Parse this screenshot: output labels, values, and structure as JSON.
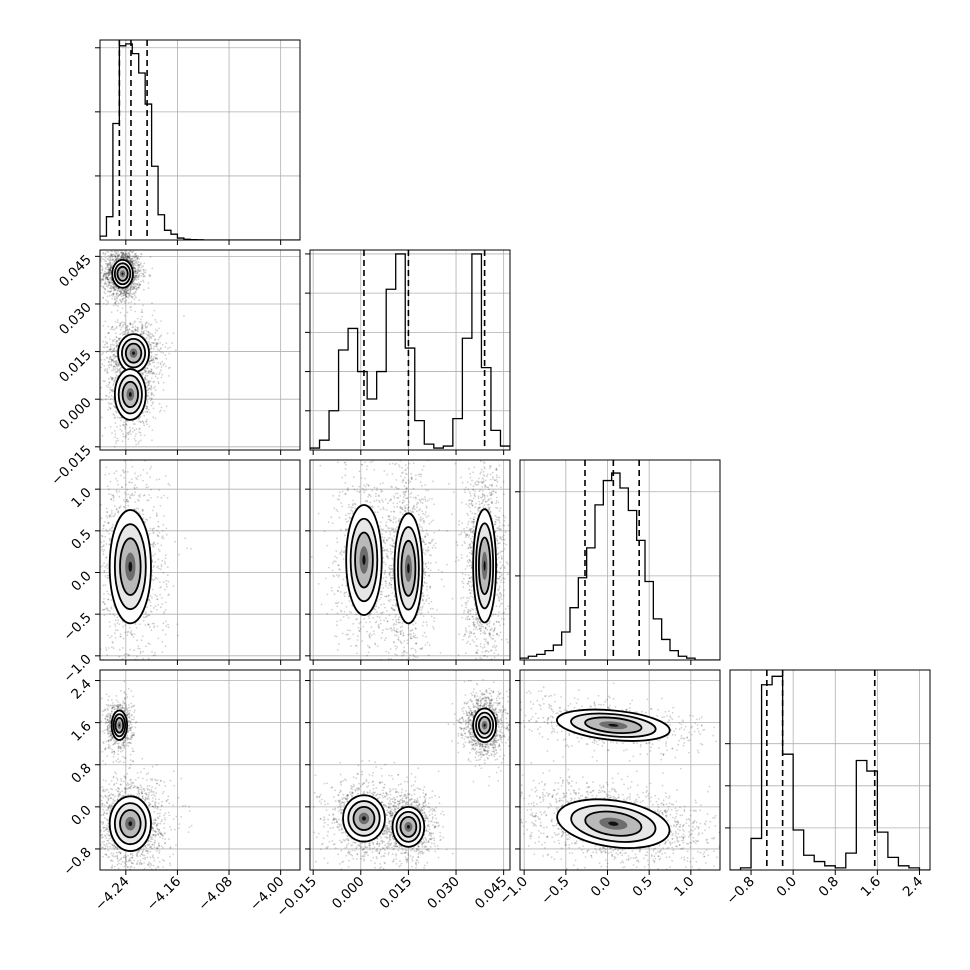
{
  "chart_data": {
    "type": "corner",
    "parameters": [
      {
        "name": "",
        "range": [
          -4.28,
          -3.97
        ],
        "ticks": [
          -4.24,
          -4.16,
          -4.08,
          -4.0
        ],
        "tick_labels": [
          "−4.24",
          "−4.16",
          "−4.08",
          "−4.00"
        ]
      },
      {
        "name": "",
        "range": [
          -0.016,
          0.047
        ],
        "ticks": [
          -0.015,
          0.0,
          0.015,
          0.03,
          0.045
        ],
        "tick_labels": [
          "−0.015",
          "0.000",
          "0.015",
          "0.030",
          "0.045"
        ]
      },
      {
        "name": "",
        "range": [
          -1.05,
          1.35
        ],
        "ticks": [
          -1.0,
          -0.5,
          0.0,
          0.5,
          1.0
        ],
        "tick_labels": [
          "−1.0",
          "−0.5",
          "0.0",
          "0.5",
          "1.0"
        ]
      },
      {
        "name": "",
        "range": [
          -1.2,
          2.6
        ],
        "ticks": [
          -0.8,
          0.0,
          0.8,
          1.6,
          2.4
        ],
        "tick_labels": [
          "−0.8",
          "0.0",
          "0.8",
          "1.6",
          "2.4"
        ]
      }
    ],
    "histograms": [
      {
        "param": 0,
        "bin_edges": [
          -4.28,
          -4.27,
          -4.26,
          -4.25,
          -4.24,
          -4.23,
          -4.22,
          -4.21,
          -4.2,
          -4.19,
          -4.18,
          -4.17,
          -4.16,
          -4.15,
          -4.14,
          -4.13,
          -4.12,
          -4.11,
          -4.1,
          -4.09,
          -4.08,
          -4.07,
          -4.06,
          -4.05,
          -4.04,
          -4.03,
          -4.02,
          -4.01,
          -4.0,
          -3.99,
          -3.98,
          -3.97
        ],
        "counts": [
          0.02,
          0.12,
          0.6,
          1.0,
          1.01,
          0.96,
          0.86,
          0.7,
          0.38,
          0.13,
          0.05,
          0.03,
          0.01,
          0.004,
          0.002,
          0.001,
          0,
          0,
          0,
          0,
          0,
          0,
          0,
          0,
          0,
          0,
          0,
          0,
          0,
          0,
          0
        ],
        "quantiles": [
          -4.25,
          -4.232,
          -4.207
        ],
        "ylim": [
          0,
          1.03
        ],
        "yticks": [
          0.33,
          0.66,
          0.99
        ]
      },
      {
        "param": 1,
        "bin_edges": [
          -0.016,
          -0.013,
          -0.01,
          -0.007,
          -0.004,
          -0.001,
          0.002,
          0.005,
          0.008,
          0.011,
          0.014,
          0.017,
          0.02,
          0.023,
          0.026,
          0.029,
          0.032,
          0.035,
          0.038,
          0.041,
          0.044,
          0.047
        ],
        "counts": [
          0.01,
          0.05,
          0.2,
          0.51,
          0.62,
          0.4,
          0.26,
          0.4,
          0.82,
          1.0,
          0.52,
          0.15,
          0.03,
          0.01,
          0.02,
          0.16,
          0.57,
          1.0,
          0.42,
          0.1,
          0.02
        ],
        "quantiles": [
          0.001,
          0.015,
          0.039
        ],
        "ylim": [
          0,
          1.02
        ],
        "yticks": [
          0.2,
          0.4,
          0.6,
          0.8,
          1.0
        ]
      },
      {
        "param": 2,
        "bin_edges": [
          -1.05,
          -0.95,
          -0.85,
          -0.75,
          -0.65,
          -0.55,
          -0.45,
          -0.35,
          -0.25,
          -0.15,
          -0.05,
          0.05,
          0.15,
          0.25,
          0.35,
          0.45,
          0.55,
          0.65,
          0.75,
          0.85,
          0.95,
          1.05,
          1.15,
          1.25,
          1.35
        ],
        "counts": [
          0.01,
          0.02,
          0.03,
          0.05,
          0.08,
          0.15,
          0.28,
          0.44,
          0.6,
          0.83,
          0.96,
          1.0,
          0.92,
          0.8,
          0.64,
          0.42,
          0.22,
          0.11,
          0.05,
          0.02,
          0.01,
          0.0,
          0.0,
          0.0
        ],
        "quantiles": [
          -0.27,
          0.07,
          0.38
        ],
        "ylim": [
          0,
          1.07
        ],
        "yticks": [
          0.45,
          0.9
        ]
      },
      {
        "param": 3,
        "bin_edges": [
          -1.2,
          -1.0,
          -0.8,
          -0.6,
          -0.4,
          -0.2,
          0.0,
          0.2,
          0.4,
          0.6,
          0.8,
          1.0,
          1.2,
          1.4,
          1.6,
          1.8,
          2.0,
          2.2,
          2.4,
          2.6
        ],
        "counts": [
          0.0,
          0.01,
          0.15,
          0.88,
          0.92,
          0.55,
          0.19,
          0.07,
          0.04,
          0.02,
          0.01,
          0.08,
          0.52,
          0.47,
          0.18,
          0.06,
          0.02,
          0.01,
          0.0
        ],
        "quantiles": [
          -0.5,
          -0.2,
          1.55
        ],
        "ylim": [
          0,
          0.95
        ],
        "yticks": [
          0.2,
          0.4,
          0.6
        ]
      }
    ],
    "pairs": [
      {
        "x": 0,
        "y": 1,
        "modes": [
          {
            "cx": -4.245,
            "cy": 0.0395,
            "sx": 0.008,
            "sy": 0.0022,
            "w": 1.0
          },
          {
            "cx": -4.228,
            "cy": 0.0145,
            "sx": 0.012,
            "sy": 0.003,
            "w": 0.65
          },
          {
            "cx": -4.233,
            "cy": 0.0015,
            "sx": 0.012,
            "sy": 0.004,
            "w": 0.45
          }
        ]
      },
      {
        "x": 0,
        "y": 2,
        "modes": [
          {
            "cx": -4.233,
            "cy": 0.07,
            "sx": 0.016,
            "sy": 0.34,
            "w": 1.0
          }
        ]
      },
      {
        "x": 0,
        "y": 3,
        "modes": [
          {
            "cx": -4.25,
            "cy": 1.55,
            "sx": 0.006,
            "sy": 0.14,
            "w": 0.5
          },
          {
            "cx": -4.233,
            "cy": -0.32,
            "sx": 0.016,
            "sy": 0.26,
            "w": 1.0
          }
        ]
      },
      {
        "x": 1,
        "y": 2,
        "modes": [
          {
            "cx": 0.001,
            "cy": 0.15,
            "sx": 0.0028,
            "sy": 0.33,
            "w": 0.55
          },
          {
            "cx": 0.015,
            "cy": 0.05,
            "sx": 0.0022,
            "sy": 0.33,
            "w": 0.8
          },
          {
            "cx": 0.039,
            "cy": 0.08,
            "sx": 0.0018,
            "sy": 0.34,
            "w": 1.0
          }
        ]
      },
      {
        "x": 1,
        "y": 3,
        "modes": [
          {
            "cx": 0.039,
            "cy": 1.55,
            "sx": 0.0018,
            "sy": 0.16,
            "w": 1.0
          },
          {
            "cx": 0.001,
            "cy": -0.22,
            "sx": 0.0033,
            "sy": 0.22,
            "w": 0.7
          },
          {
            "cx": 0.015,
            "cy": -0.38,
            "sx": 0.0025,
            "sy": 0.19,
            "w": 0.8
          }
        ]
      },
      {
        "x": 2,
        "y": 3,
        "modes": [
          {
            "cx": 0.07,
            "cy": 1.55,
            "sx": 0.34,
            "sy": 0.14,
            "w": 0.45,
            "rho": -0.35
          },
          {
            "cx": 0.07,
            "cy": -0.32,
            "sx": 0.34,
            "sy": 0.22,
            "w": 1.0,
            "rho": -0.3
          }
        ]
      }
    ],
    "grid": true,
    "legend": "none"
  }
}
